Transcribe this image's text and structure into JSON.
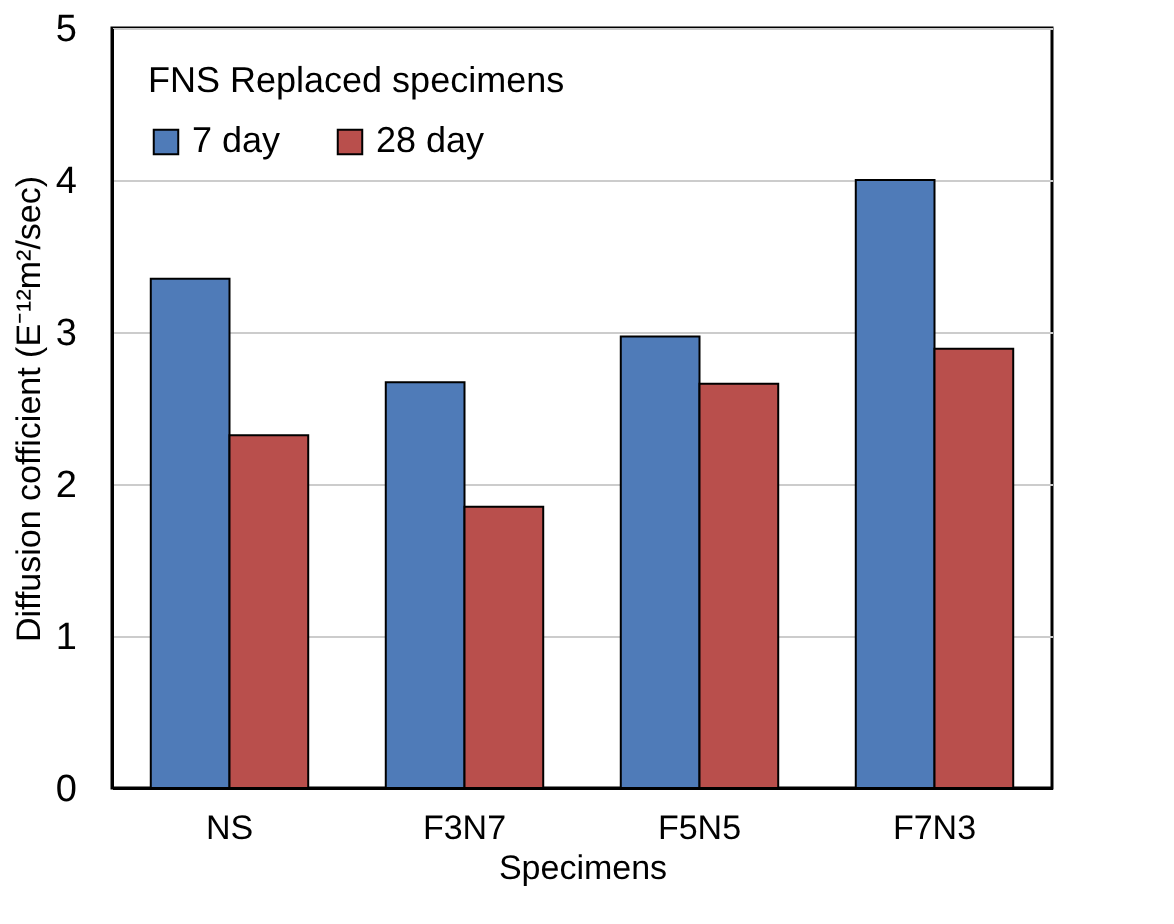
{
  "chart_data": {
    "type": "bar",
    "xlabel": "Specimens",
    "ylabel": "Diffusion cofficient (E⁻¹²m²/sec)",
    "legend_title": "FNS Replaced specimens",
    "categories": [
      "NS",
      "F3N7",
      "F5N5",
      "F7N3"
    ],
    "series": [
      {
        "name": "7 day",
        "color": "#4f7bb8",
        "values": [
          3.35,
          2.67,
          2.97,
          4.0
        ]
      },
      {
        "name": "28 day",
        "color": "#b94f4c",
        "values": [
          2.32,
          1.85,
          2.66,
          2.89
        ]
      }
    ],
    "ylim": [
      0,
      5
    ],
    "yticks": [
      0,
      1,
      2,
      3,
      4,
      5
    ],
    "grid": "y",
    "legend": "top left"
  }
}
